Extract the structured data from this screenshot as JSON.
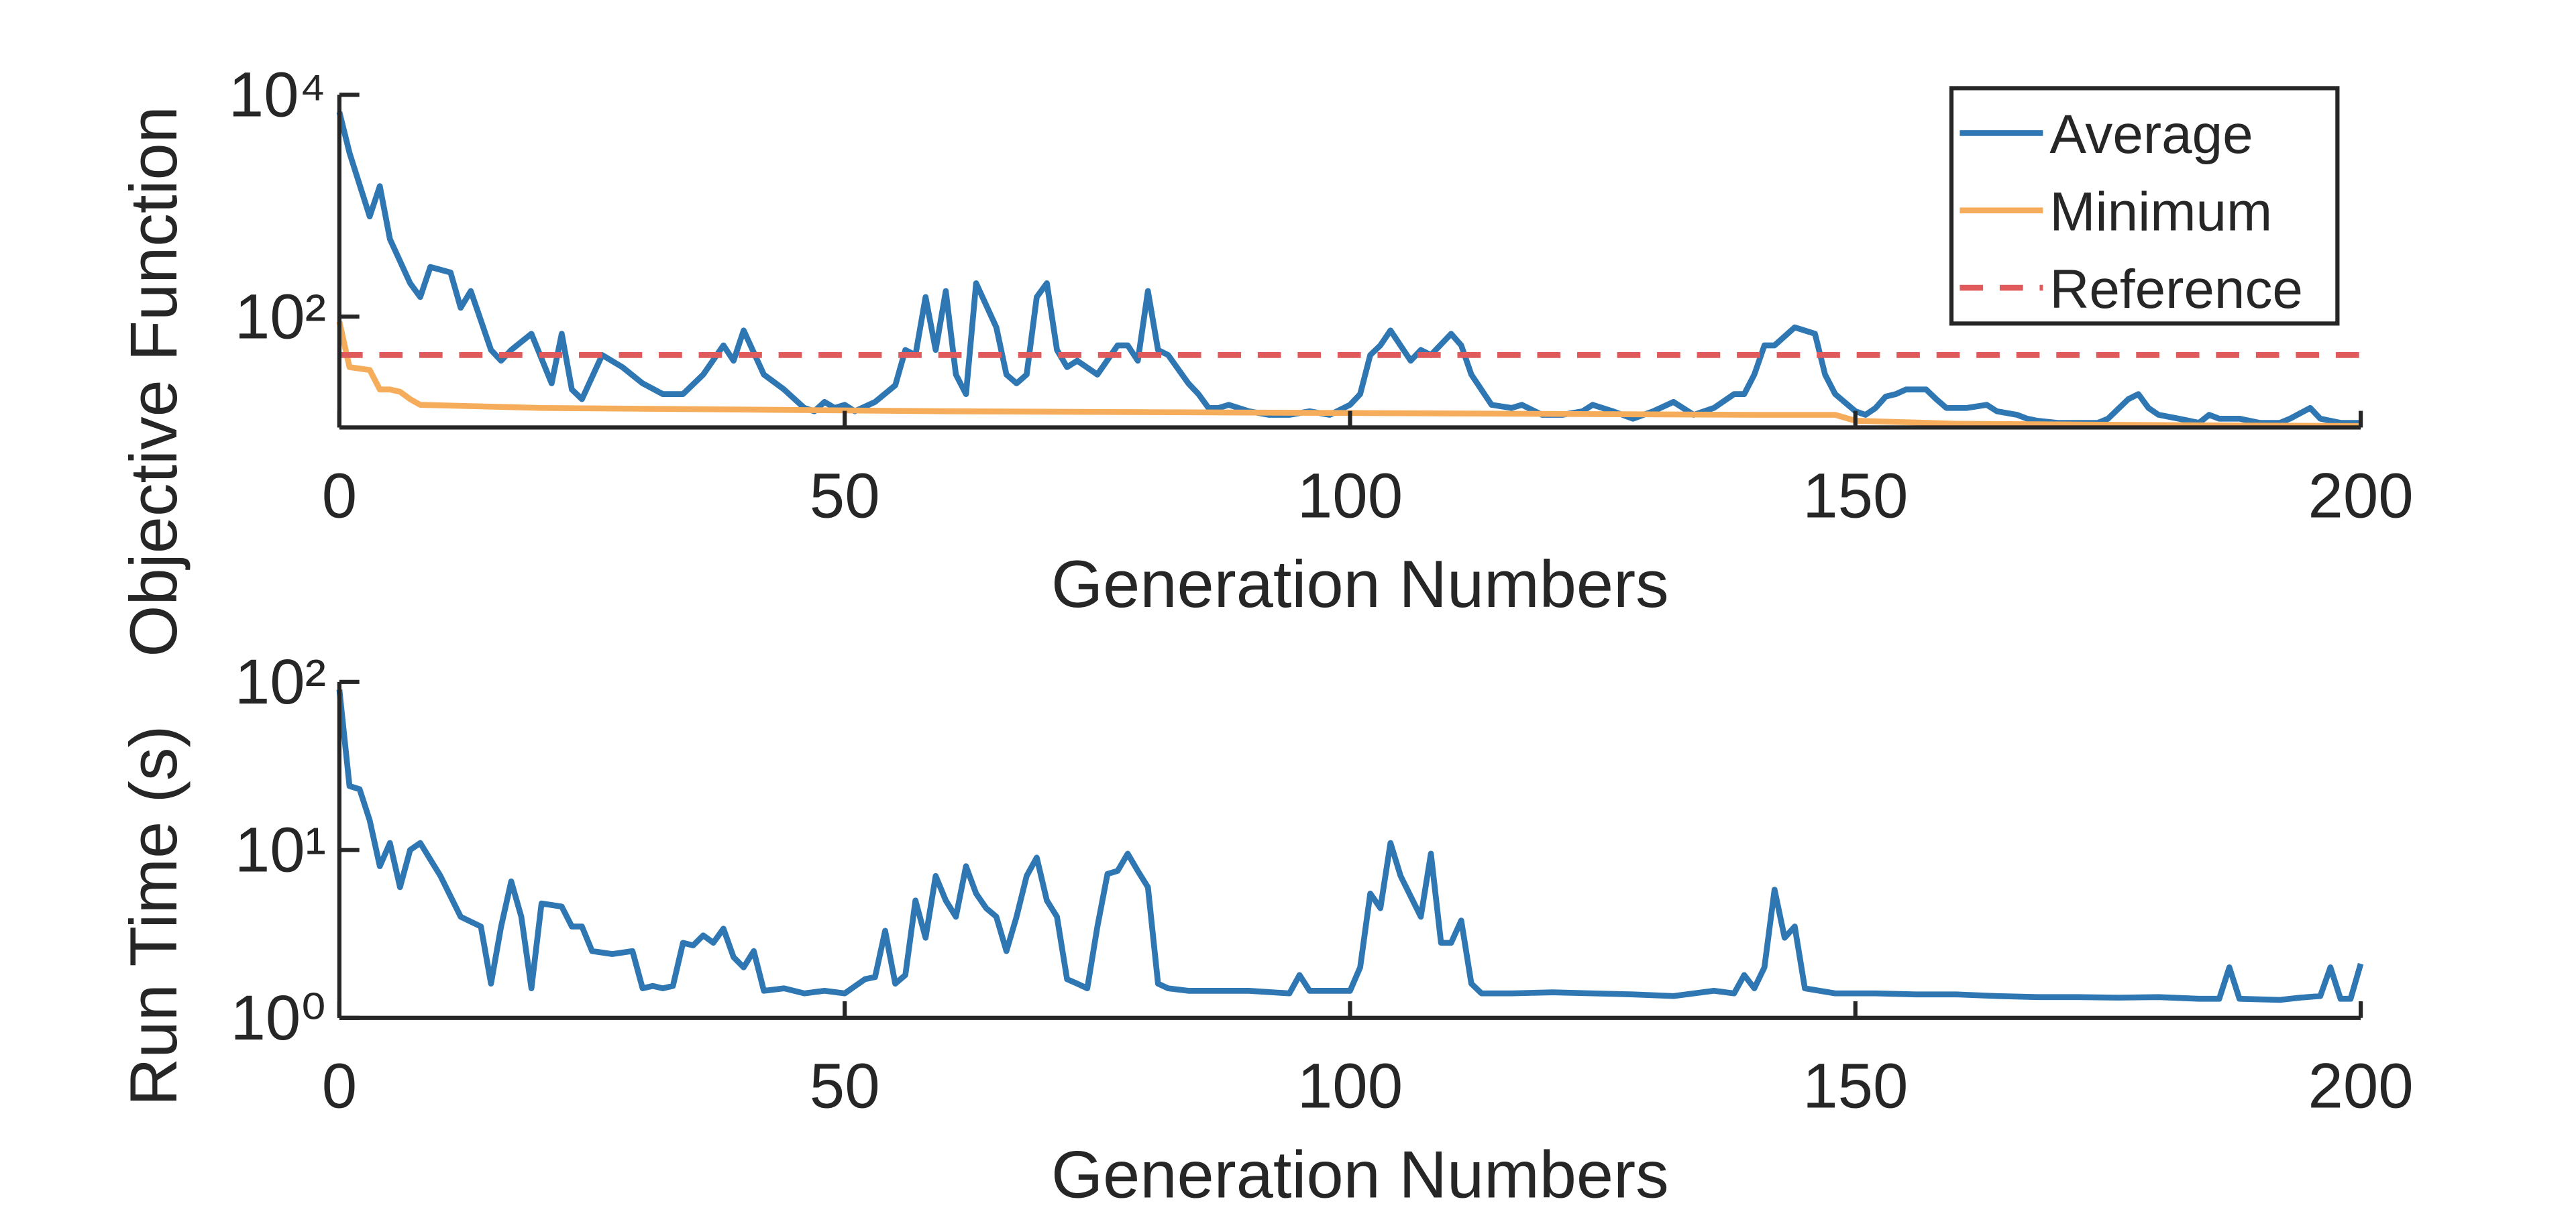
{
  "chart_data": [
    {
      "type": "line",
      "xlabel": "Generation Numbers",
      "ylabel": "Objective Function",
      "xlim": [
        0,
        200
      ],
      "xticks": [
        0,
        50,
        100,
        150,
        200
      ],
      "ylim": [
        10,
        10000
      ],
      "yscale": "log",
      "yticks": [
        {
          "value": 100,
          "label": "10²"
        },
        {
          "value": 10000,
          "label": "10⁴"
        }
      ],
      "legend": "upper right",
      "series": [
        {
          "name": "Average",
          "color": "#2f77b3",
          "style": "solid",
          "x": [
            0,
            1,
            3,
            4,
            5,
            7,
            8,
            9,
            11,
            12,
            13,
            15,
            16,
            17,
            19,
            21,
            22,
            23,
            24,
            26,
            28,
            30,
            32,
            34,
            36,
            38,
            39,
            40,
            42,
            44,
            46,
            47,
            48,
            49,
            50,
            51,
            53,
            55,
            56,
            57,
            58,
            59,
            60,
            61,
            62,
            63,
            65,
            66,
            67,
            68,
            69,
            70,
            71,
            72,
            73,
            75,
            77,
            78,
            79,
            80,
            81,
            82,
            84,
            85,
            86,
            87,
            88,
            90,
            92,
            94,
            96,
            98,
            100,
            101,
            102,
            103,
            104,
            106,
            107,
            108,
            110,
            111,
            112,
            114,
            116,
            117,
            119,
            121,
            123,
            124,
            126,
            128,
            130,
            132,
            134,
            136,
            138,
            139,
            140,
            141,
            142,
            144,
            146,
            147,
            148,
            150,
            151,
            152,
            153,
            154,
            155,
            157,
            158,
            159,
            161,
            163,
            164,
            166,
            167,
            168,
            170,
            172,
            174,
            175,
            177,
            178,
            179,
            180,
            182,
            184,
            185,
            186,
            188,
            190,
            192,
            193,
            195,
            196,
            198,
            200
          ],
          "values": [
            7000,
            3000,
            800,
            1500,
            500,
            200,
            150,
            280,
            250,
            120,
            170,
            50,
            40,
            50,
            70,
            25,
            70,
            22,
            18,
            45,
            35,
            25,
            20,
            20,
            30,
            55,
            40,
            75,
            30,
            22,
            15,
            14,
            17,
            15,
            16,
            14,
            17,
            24,
            50,
            45,
            150,
            50,
            170,
            30,
            20,
            200,
            80,
            30,
            25,
            30,
            150,
            200,
            50,
            35,
            40,
            30,
            55,
            55,
            40,
            170,
            50,
            45,
            25,
            20,
            15,
            15,
            16,
            14,
            13,
            13,
            14,
            13,
            16,
            20,
            45,
            55,
            75,
            40,
            50,
            45,
            70,
            55,
            30,
            16,
            15,
            16,
            13,
            13,
            14,
            16,
            14,
            12,
            14,
            17,
            13,
            15,
            20,
            20,
            30,
            55,
            55,
            80,
            70,
            30,
            20,
            14,
            13,
            15,
            19,
            20,
            22,
            22,
            18,
            15,
            15,
            16,
            14,
            13,
            12,
            11.5,
            11,
            11,
            11,
            12,
            18,
            20,
            15,
            13,
            12,
            11,
            13,
            12,
            12,
            11,
            11,
            12,
            15,
            12,
            11,
            11
          ]
        },
        {
          "name": "Minimum",
          "color": "#f5ad5c",
          "style": "solid",
          "x": [
            0,
            1,
            3,
            4,
            5,
            6,
            7,
            8,
            14,
            20,
            40,
            60,
            100,
            140,
            148,
            150,
            160,
            180,
            200
          ],
          "values": [
            90,
            35,
            33,
            22,
            22,
            21,
            18,
            16,
            15.5,
            15,
            14.5,
            14,
            13.5,
            13,
            13,
            11.5,
            10.8,
            10.5,
            10.3
          ]
        },
        {
          "name": "Reference",
          "color": "#e05a5c",
          "style": "dashed",
          "x": [
            0,
            200
          ],
          "values": [
            45,
            45
          ]
        }
      ]
    },
    {
      "type": "line",
      "xlabel": "Generation Numbers",
      "ylabel": "Run Time (s)",
      "xlim": [
        0,
        200
      ],
      "xticks": [
        0,
        50,
        100,
        150,
        200
      ],
      "ylim": [
        1,
        100
      ],
      "yscale": "log",
      "yticks": [
        {
          "value": 1,
          "label": "10⁰"
        },
        {
          "value": 10,
          "label": "10¹"
        },
        {
          "value": 100,
          "label": "10²"
        }
      ],
      "series": [
        {
          "color": "#2f77b3",
          "style": "solid",
          "x": [
            0,
            1,
            2,
            3,
            4,
            5,
            6,
            7,
            8,
            10,
            12,
            14,
            15,
            16,
            17,
            18,
            19,
            20,
            21,
            22,
            23,
            24,
            25,
            27,
            29,
            30,
            31,
            32,
            33,
            34,
            35,
            36,
            37,
            38,
            39,
            40,
            41,
            42,
            44,
            46,
            48,
            50,
            52,
            53,
            54,
            55,
            56,
            57,
            58,
            59,
            60,
            61,
            62,
            63,
            64,
            65,
            66,
            67,
            68,
            69,
            70,
            71,
            72,
            73,
            74,
            75,
            76,
            77,
            78,
            79,
            80,
            81,
            82,
            84,
            86,
            90,
            94,
            95,
            96,
            100,
            101,
            102,
            103,
            104,
            105,
            107,
            108,
            109,
            110,
            111,
            112,
            113,
            116,
            120,
            124,
            128,
            132,
            136,
            138,
            139,
            140,
            141,
            142,
            143,
            144,
            145,
            148,
            152,
            156,
            160,
            164,
            168,
            172,
            176,
            180,
            184,
            186,
            187,
            188,
            192,
            194,
            196,
            197,
            198,
            199,
            200
          ],
          "values": [
            90,
            24,
            23,
            15,
            8,
            11,
            6,
            10,
            11,
            7,
            4,
            3.5,
            1.6,
            3.5,
            6.5,
            4,
            1.5,
            4.8,
            4.7,
            4.6,
            3.5,
            3.5,
            2.5,
            2.4,
            2.5,
            1.5,
            1.55,
            1.5,
            1.55,
            2.8,
            2.7,
            3.1,
            2.8,
            3.4,
            2.3,
            2,
            2.5,
            1.45,
            1.5,
            1.4,
            1.45,
            1.4,
            1.7,
            1.75,
            3.3,
            1.6,
            1.8,
            5,
            3,
            7,
            5,
            4,
            8,
            5.5,
            4.5,
            4,
            2.5,
            4,
            7,
            9,
            5,
            4,
            1.7,
            1.6,
            1.5,
            3.5,
            7.2,
            7.5,
            9.5,
            7.5,
            6,
            1.6,
            1.5,
            1.45,
            1.45,
            1.45,
            1.4,
            1.8,
            1.45,
            1.45,
            2,
            5.5,
            4.5,
            11,
            7,
            4,
            9.5,
            2.8,
            2.8,
            3.8,
            1.6,
            1.4,
            1.4,
            1.42,
            1.4,
            1.38,
            1.35,
            1.45,
            1.4,
            1.8,
            1.5,
            2,
            5.8,
            3,
            3.5,
            1.5,
            1.4,
            1.4,
            1.38,
            1.38,
            1.35,
            1.33,
            1.33,
            1.32,
            1.33,
            1.3,
            1.3,
            2,
            1.3,
            1.28,
            1.32,
            1.35,
            2,
            1.3,
            1.3,
            2.1
          ]
        }
      ]
    }
  ]
}
